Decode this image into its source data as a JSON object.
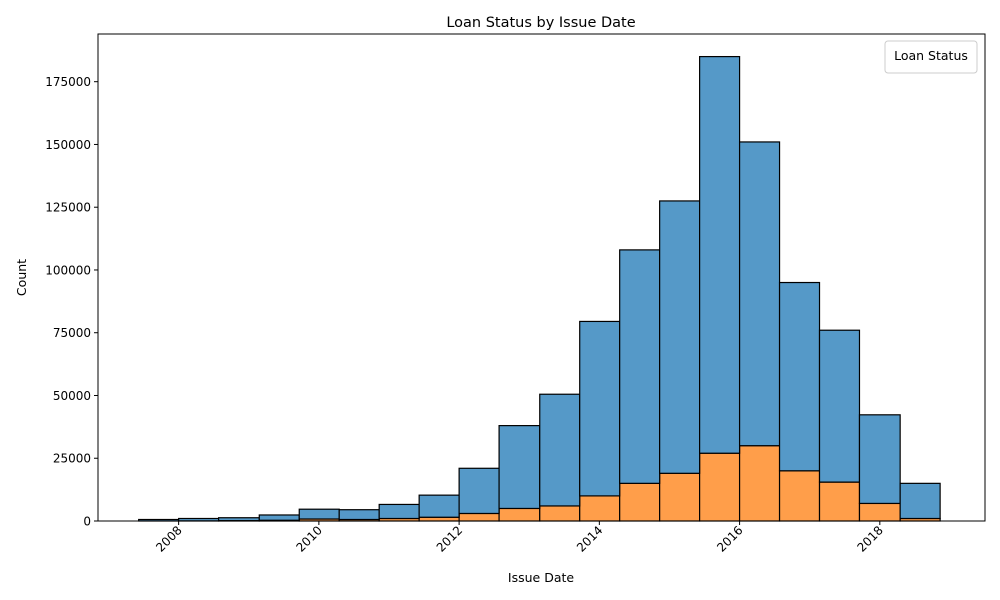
{
  "chart_data": {
    "type": "bar",
    "stacked": true,
    "title": "Loan Status by Issue Date",
    "xlabel": "Issue Date",
    "ylabel": "Count",
    "xlim": [
      2006.85,
      2019.5
    ],
    "ylim": [
      0,
      194000
    ],
    "x_ticks": [
      2008,
      2010,
      2012,
      2014,
      2016,
      2018
    ],
    "y_ticks": [
      0,
      25000,
      50000,
      75000,
      100000,
      125000,
      150000,
      175000
    ],
    "legend": {
      "title": "Loan Status",
      "placement": "upper right",
      "entries": []
    },
    "grid": false,
    "bin_edges": [
      2007.43,
      2008.0,
      2008.57,
      2009.15,
      2009.72,
      2010.29,
      2010.86,
      2011.43,
      2012.0,
      2012.57,
      2013.15,
      2013.72,
      2014.29,
      2014.86,
      2015.43,
      2016.0,
      2016.57,
      2017.14,
      2017.71,
      2018.29,
      2018.86
    ],
    "series": [
      {
        "color": "#ff9e4a",
        "values": [
          0,
          50,
          150,
          300,
          800,
          600,
          1000,
          1500,
          3000,
          5000,
          6000,
          10000,
          15000,
          19000,
          27000,
          30000,
          20000,
          15500,
          7000,
          1000
        ]
      },
      {
        "color": "#5599c8",
        "values": [
          600,
          950,
          1150,
          2100,
          3900,
          3900,
          5600,
          8800,
          18000,
          33000,
          44500,
          69500,
          93000,
          108500,
          158000,
          121000,
          75000,
          60500,
          35300,
          14000
        ]
      }
    ]
  }
}
